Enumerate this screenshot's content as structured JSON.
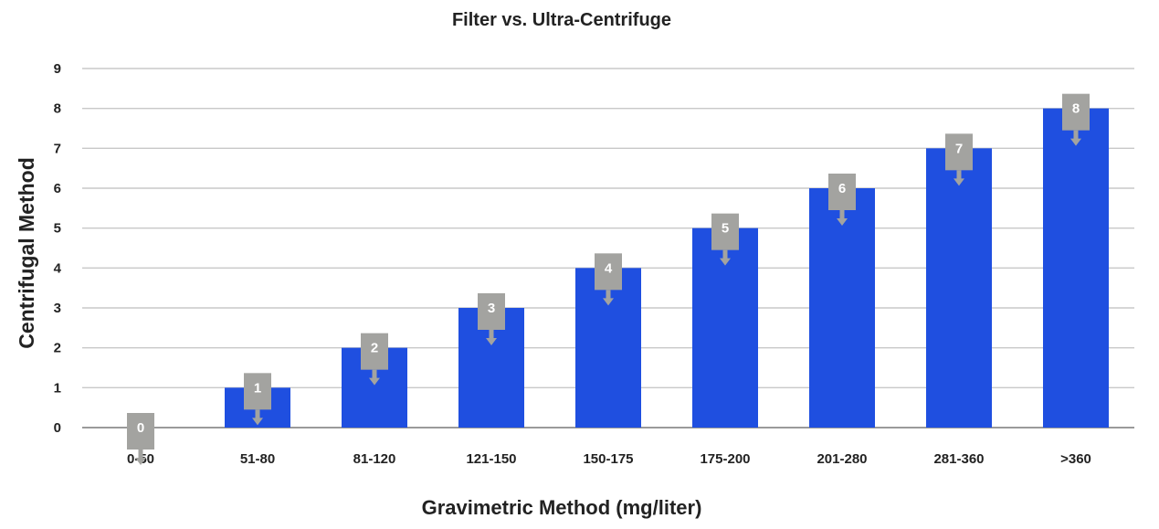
{
  "chart_data": {
    "type": "bar",
    "title": "Filter vs. Ultra-Centrifuge",
    "xlabel": "Gravimetric Method (mg/liter)",
    "ylabel": "Centrifugal Method",
    "categories": [
      "0-50",
      "51-80",
      "81-120",
      "121-150",
      "150-175",
      "175-200",
      "201-280",
      "281-360",
      ">360"
    ],
    "values": [
      0,
      1,
      2,
      3,
      4,
      5,
      6,
      7,
      8
    ],
    "data_labels": [
      "0",
      "1",
      "2",
      "3",
      "4",
      "5",
      "6",
      "7",
      "8"
    ],
    "ylim": [
      0,
      9
    ],
    "yticks": [
      "0",
      "1",
      "2",
      "3",
      "4",
      "5",
      "6",
      "7",
      "8",
      "9"
    ],
    "grid": true,
    "legend": "none",
    "colors": {
      "bar": "#1f4fe0",
      "label_box": "#a3a3a0",
      "grid": "#c8c8c8",
      "text": "#222222"
    }
  }
}
